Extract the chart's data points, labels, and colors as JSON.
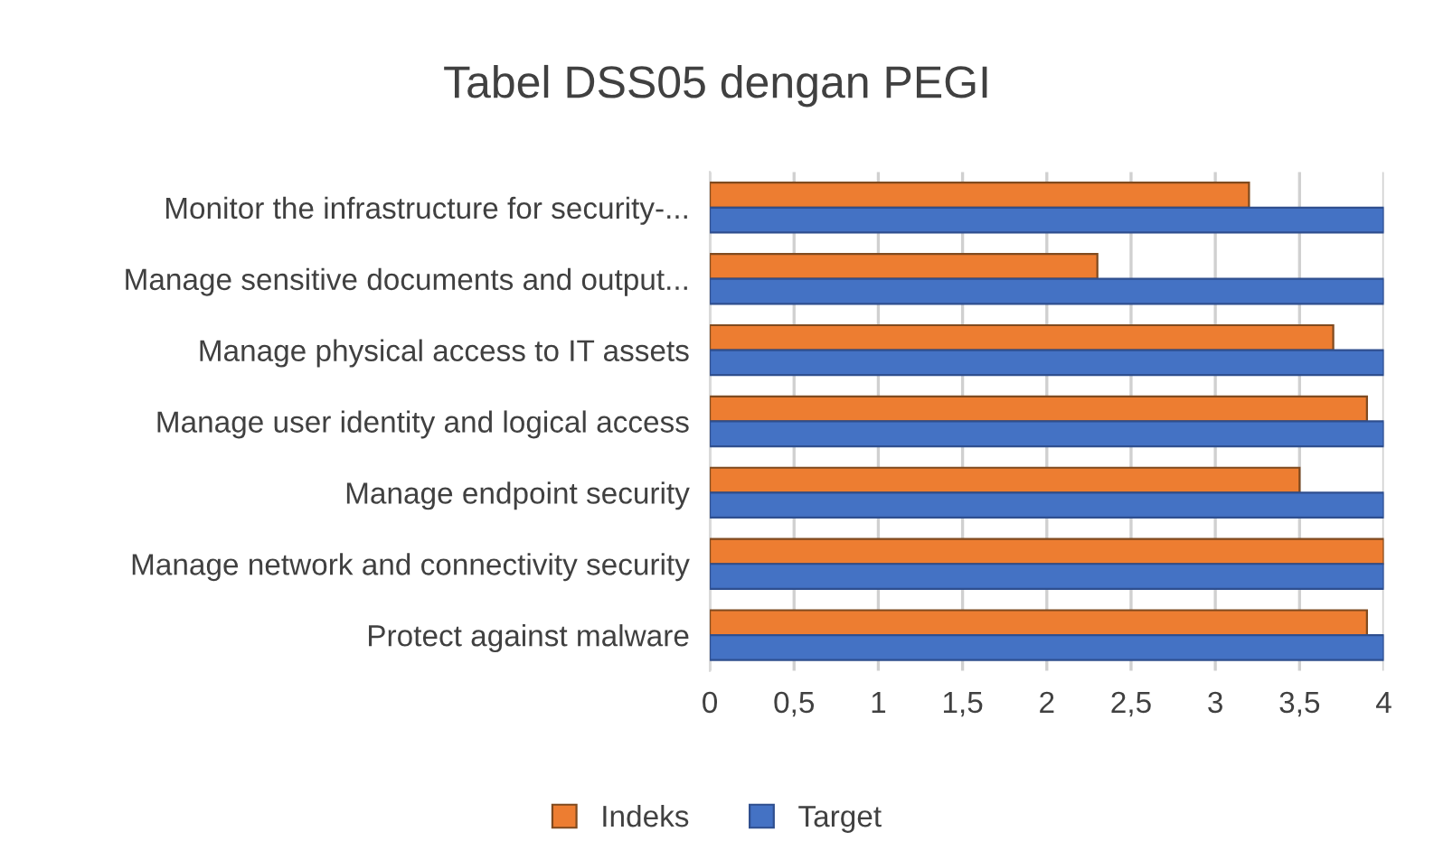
{
  "chart_data": {
    "type": "bar",
    "orientation": "horizontal",
    "title": "Tabel DSS05 dengan PEGI",
    "categories": [
      "Monitor the infrastructure for security-...",
      "Manage sensitive documents and output...",
      "Manage physical access to IT assets",
      "Manage user identity and logical access",
      "Manage endpoint security",
      "Manage network and connectivity security",
      "Protect against malware"
    ],
    "series": [
      {
        "name": "Indeks",
        "color": "#ed7d31",
        "values": [
          3.2,
          2.3,
          3.7,
          3.9,
          3.5,
          4,
          3.9
        ]
      },
      {
        "name": "Target",
        "color": "#4472c4",
        "values": [
          4,
          4,
          4,
          4,
          4,
          4,
          4
        ]
      }
    ],
    "xlim": [
      0,
      4
    ],
    "xticks": [
      {
        "value": 0,
        "label": "0"
      },
      {
        "value": 0.5,
        "label": "0,5"
      },
      {
        "value": 1,
        "label": "1"
      },
      {
        "value": 1.5,
        "label": "1,5"
      },
      {
        "value": 2,
        "label": "2"
      },
      {
        "value": 2.5,
        "label": "2,5"
      },
      {
        "value": 3,
        "label": "3"
      },
      {
        "value": 3.5,
        "label": "3,5"
      },
      {
        "value": 4,
        "label": "4"
      }
    ],
    "grid": "x",
    "legend": "bottom"
  }
}
